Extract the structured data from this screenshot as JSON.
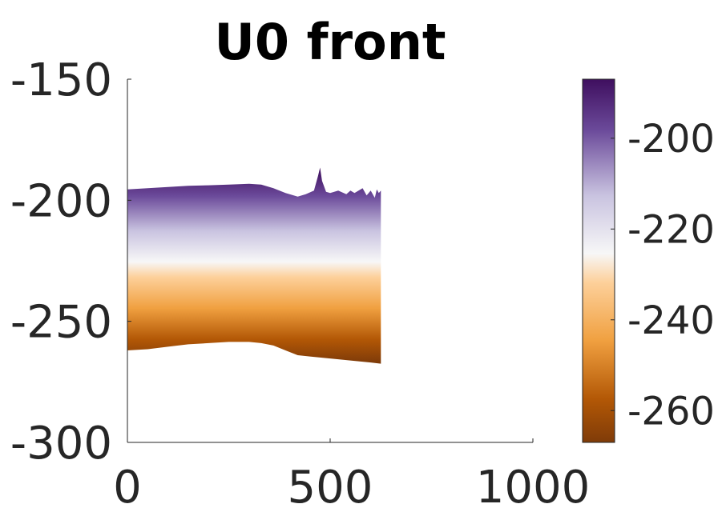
{
  "chart_data": {
    "type": "heatmap",
    "title": "U0 front",
    "xlabel": "",
    "ylabel": "",
    "xlim": [
      0,
      1000
    ],
    "ylim": [
      -300,
      -150
    ],
    "x_ticks": [
      "0",
      "500",
      "1000"
    ],
    "y_ticks": [
      "-150",
      "-200",
      "-250",
      "-300"
    ],
    "grid": false,
    "colormap": "PuOr",
    "colorbar": {
      "range": [
        -267,
        -187
      ],
      "ticks": [
        "-200",
        "-220",
        "-240",
        "-260"
      ],
      "tick_values": [
        -200,
        -220,
        -240,
        -260
      ]
    },
    "colors": {
      "purple_dark": "#3f0f5f",
      "purple": "#6b4a9a",
      "lavender": "#c9c3e0",
      "white": "#f7f7f7",
      "peach": "#fdd09a",
      "orange": "#f0a040",
      "dark_orange": "#b35806",
      "brown": "#7f3b08"
    },
    "top_edge": {
      "x": [
        0,
        50,
        100,
        150,
        200,
        250,
        300,
        330,
        360,
        390,
        420,
        440,
        460,
        470,
        475,
        480,
        490,
        500,
        520,
        540,
        550,
        560,
        580,
        590,
        600,
        610,
        615,
        620,
        625
      ],
      "y": [
        -195.5,
        -195,
        -194.5,
        -194,
        -193.8,
        -193.5,
        -193.2,
        -193.5,
        -195,
        -197,
        -198.5,
        -197.5,
        -196,
        -190,
        -186.5,
        -192,
        -196.5,
        -197,
        -196,
        -197.5,
        -196,
        -197,
        -195,
        -198,
        -196,
        -199,
        -195.5,
        -197,
        -196
      ]
    },
    "bottom_edge": {
      "x": [
        0,
        50,
        100,
        150,
        200,
        250,
        300,
        330,
        360,
        390,
        420,
        450,
        480,
        510,
        540,
        570,
        600,
        625
      ],
      "y": [
        -262,
        -261.5,
        -260.5,
        -259.5,
        -259,
        -258.5,
        -258.5,
        -259,
        -260,
        -262,
        -264,
        -264.5,
        -265,
        -265.5,
        -266,
        -266.5,
        -267,
        -267.5
      ]
    }
  }
}
